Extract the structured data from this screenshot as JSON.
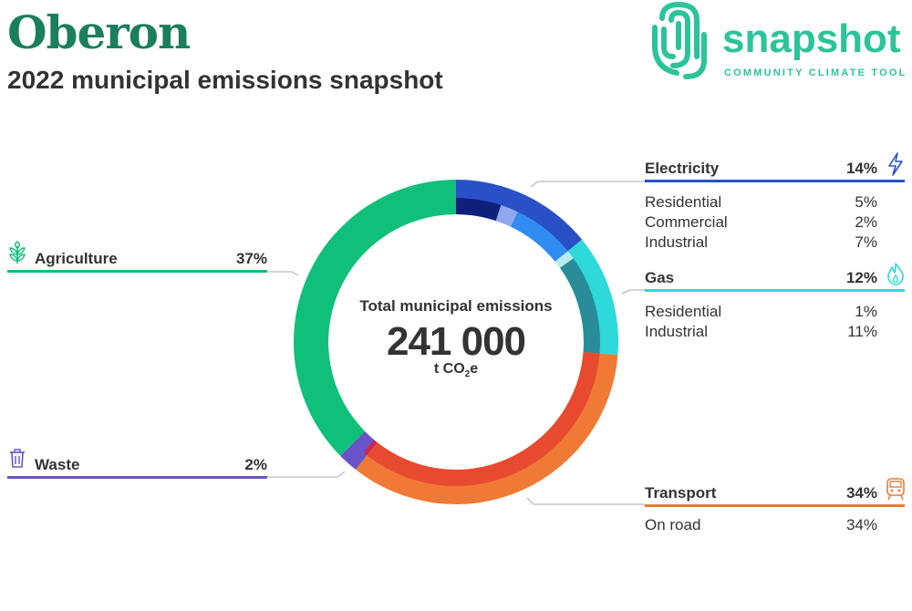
{
  "header": {
    "title": "Oberon",
    "subtitle": "2022 municipal emissions snapshot"
  },
  "logo": {
    "word": "snapshot",
    "tagline": "COMMUNITY CLIMATE TOOL",
    "color": "#2bc49a"
  },
  "center": {
    "label": "Total municipal emissions",
    "value": "241 000",
    "unit_prefix": "t CO",
    "unit_sub": "2",
    "unit_suffix": "e"
  },
  "chart_data": {
    "type": "pie",
    "style": "donut",
    "total": 241000,
    "unit": "t CO2e",
    "sectors": [
      {
        "name": "Electricity",
        "percent": "14%",
        "value": 14,
        "color": "#2a50c8",
        "icon": "lightning-icon",
        "subs": [
          {
            "name": "Residential",
            "percent": "5%",
            "value": 5,
            "color": "#0f1f7a"
          },
          {
            "name": "Commercial",
            "percent": "2%",
            "value": 2,
            "color": "#8fa8f0"
          },
          {
            "name": "Industrial",
            "percent": "7%",
            "value": 7,
            "color": "#2f8cf0"
          }
        ]
      },
      {
        "name": "Gas",
        "percent": "12%",
        "value": 12,
        "color": "#2dd9d9",
        "icon": "flame-icon",
        "subs": [
          {
            "name": "Residential",
            "percent": "1%",
            "value": 1,
            "color": "#b8ecec"
          },
          {
            "name": "Industrial",
            "percent": "11%",
            "value": 11,
            "color": "#2a8c98"
          }
        ]
      },
      {
        "name": "Transport",
        "percent": "34%",
        "value": 34,
        "color": "#f07a35",
        "icon": "train-icon",
        "subs": [
          {
            "name": "On road",
            "percent": "34%",
            "value": 34,
            "color": "#e84a30"
          }
        ]
      },
      {
        "name": "Waste",
        "percent": "2%",
        "value": 2,
        "color": "#6a52c8",
        "icon": "trash-icon",
        "subs": [
          {
            "name": "",
            "percent": "",
            "value": 0.5,
            "color": "#c82a4a"
          },
          {
            "name": "",
            "percent": "",
            "value": 1.5,
            "color": "#6a52c8"
          }
        ]
      },
      {
        "name": "Agriculture",
        "percent": "37%",
        "value": 37,
        "color": "#10bf7a",
        "icon": "plant-icon",
        "subs": [
          {
            "name": "",
            "percent": "",
            "value": 37,
            "color": "#10bf7a"
          }
        ]
      }
    ]
  }
}
